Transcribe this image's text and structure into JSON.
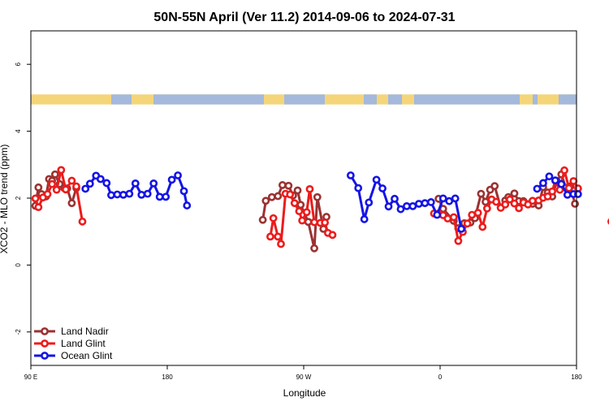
{
  "chart_data": {
    "type": "line",
    "title": "50N-55N April (Ver 11.2)   2014-09-06 to 2024-07-31",
    "xlabel": "Longitude",
    "ylabel": "XCO2 - MLO trend (ppm)",
    "xlim": [
      90,
      450
    ],
    "ylim": [
      -3,
      7
    ],
    "x_ticks": [
      {
        "value": 90,
        "label": "90 E"
      },
      {
        "value": 180,
        "label": "180"
      },
      {
        "value": 270,
        "label": "90 W"
      },
      {
        "value": 360,
        "label": "0"
      },
      {
        "value": 450,
        "label": "180"
      }
    ],
    "y_ticks": [
      -2,
      0,
      2,
      4,
      6
    ],
    "grid": false,
    "legend_position": "bottom-left",
    "land_mask_band": {
      "y_range": [
        4.8,
        5.1
      ],
      "land_color": "#f5d57a",
      "ocean_color": "#a4b9db"
    },
    "series": [
      {
        "name": "Land Nadir",
        "color": "#9b3232",
        "points": [
          [
            93,
            1.77
          ],
          [
            95,
            2.32
          ],
          [
            97,
            2.12
          ],
          [
            100,
            2.05
          ],
          [
            102,
            2.57
          ],
          [
            104,
            2.52
          ],
          [
            106,
            2.71
          ],
          [
            109,
            2.42
          ],
          [
            112,
            2.3
          ],
          [
            114,
            2.29
          ],
          [
            117,
            1.85
          ],
          [
            120,
            2.3
          ],
          [
            243,
            1.35
          ],
          [
            245,
            1.92
          ],
          [
            249,
            2.03
          ],
          [
            253,
            2.06
          ],
          [
            256,
            2.39
          ],
          [
            260,
            2.37
          ],
          [
            263,
            2.08
          ],
          [
            266,
            2.23
          ],
          [
            268,
            1.8
          ],
          [
            273,
            1.29
          ],
          [
            277,
            0.5
          ],
          [
            279,
            2.03
          ],
          [
            283,
            1.08
          ],
          [
            285,
            1.44
          ],
          [
            359,
            1.98
          ],
          [
            362,
            1.68
          ],
          [
            369,
            1.32
          ],
          [
            372,
            1.1
          ],
          [
            376,
            1.25
          ],
          [
            380,
            1.27
          ],
          [
            383,
            1.4
          ],
          [
            387,
            2.13
          ],
          [
            390,
            1.89
          ],
          [
            393,
            2.25
          ],
          [
            396,
            2.36
          ],
          [
            400,
            1.72
          ],
          [
            403,
            1.93
          ],
          [
            405,
            2.03
          ],
          [
            409,
            2.14
          ],
          [
            412,
            1.91
          ],
          [
            415,
            1.91
          ],
          [
            418,
            1.82
          ],
          [
            421,
            1.83
          ],
          [
            425,
            1.78
          ],
          [
            428,
            2.33
          ],
          [
            431,
            2.17
          ],
          [
            434,
            2.05
          ],
          [
            437,
            2.51
          ],
          [
            440,
            2.71
          ],
          [
            443,
            2.31
          ],
          [
            446,
            2.35
          ],
          [
            449,
            1.83
          ]
        ]
      },
      {
        "name": "Land Glint",
        "color": "#ec1c1c",
        "points": [
          [
            93,
            1.99
          ],
          [
            95,
            1.73
          ],
          [
            98,
            2.02
          ],
          [
            101,
            2.12
          ],
          [
            104,
            2.42
          ],
          [
            107,
            2.25
          ],
          [
            110,
            2.84
          ],
          [
            113,
            2.26
          ],
          [
            117,
            2.52
          ],
          [
            120,
            2.35
          ],
          [
            124,
            1.3
          ],
          [
            248,
            0.85
          ],
          [
            250,
            1.4
          ],
          [
            253,
            0.85
          ],
          [
            255,
            0.63
          ],
          [
            258,
            2.13
          ],
          [
            261,
            2.11
          ],
          [
            264,
            1.85
          ],
          [
            267,
            1.61
          ],
          [
            269,
            1.33
          ],
          [
            272,
            1.58
          ],
          [
            274,
            2.27
          ],
          [
            277,
            1.28
          ],
          [
            281,
            1.26
          ],
          [
            284,
            1.27
          ],
          [
            286,
            0.96
          ],
          [
            289,
            0.9
          ],
          [
            356,
            1.54
          ],
          [
            359,
            1.54
          ],
          [
            362,
            1.49
          ],
          [
            365,
            1.39
          ],
          [
            369,
            1.43
          ],
          [
            372,
            0.72
          ],
          [
            375,
            0.99
          ],
          [
            378,
            1.24
          ],
          [
            381,
            1.5
          ],
          [
            385,
            1.56
          ],
          [
            388,
            1.14
          ],
          [
            391,
            1.69
          ],
          [
            394,
            1.96
          ],
          [
            397,
            1.89
          ],
          [
            400,
            1.71
          ],
          [
            403,
            1.81
          ],
          [
            406,
            1.96
          ],
          [
            409,
            1.84
          ],
          [
            412,
            1.7
          ],
          [
            415,
            1.87
          ],
          [
            418,
            1.81
          ],
          [
            421,
            1.92
          ],
          [
            425,
            1.93
          ],
          [
            428,
            2.01
          ],
          [
            431,
            2.05
          ],
          [
            434,
            2.2
          ],
          [
            436,
            2.52
          ],
          [
            439,
            2.25
          ],
          [
            442,
            2.83
          ],
          [
            445,
            2.3
          ],
          [
            448,
            2.51
          ],
          [
            451,
            2.29
          ],
          [
            473,
            1.3
          ]
        ]
      },
      {
        "name": "Ocean Glint",
        "color": "#1414e6",
        "points": [
          [
            126,
            2.28
          ],
          [
            129,
            2.43
          ],
          [
            133,
            2.67
          ],
          [
            136,
            2.57
          ],
          [
            140,
            2.45
          ],
          [
            143,
            2.09
          ],
          [
            147,
            2.11
          ],
          [
            151,
            2.1
          ],
          [
            155,
            2.13
          ],
          [
            159,
            2.44
          ],
          [
            163,
            2.1
          ],
          [
            167,
            2.13
          ],
          [
            171,
            2.44
          ],
          [
            175,
            2.04
          ],
          [
            179,
            2.04
          ],
          [
            183,
            2.55
          ],
          [
            187,
            2.68
          ],
          [
            191,
            2.21
          ],
          [
            193,
            1.78
          ],
          [
            301,
            2.68
          ],
          [
            306,
            2.3
          ],
          [
            310,
            1.37
          ],
          [
            313,
            1.87
          ],
          [
            318,
            2.55
          ],
          [
            322,
            2.29
          ],
          [
            326,
            1.75
          ],
          [
            330,
            1.98
          ],
          [
            334,
            1.67
          ],
          [
            338,
            1.76
          ],
          [
            342,
            1.76
          ],
          [
            346,
            1.83
          ],
          [
            350,
            1.85
          ],
          [
            354,
            1.88
          ],
          [
            358,
            1.5
          ],
          [
            362,
            1.99
          ],
          [
            366,
            1.91
          ],
          [
            370,
            1.99
          ],
          [
            374,
            1.08
          ],
          [
            424,
            2.28
          ],
          [
            428,
            2.45
          ],
          [
            432,
            2.65
          ],
          [
            436,
            2.53
          ],
          [
            440,
            2.42
          ],
          [
            444,
            2.1
          ],
          [
            448,
            2.12
          ],
          [
            451,
            2.12
          ]
        ]
      }
    ]
  }
}
